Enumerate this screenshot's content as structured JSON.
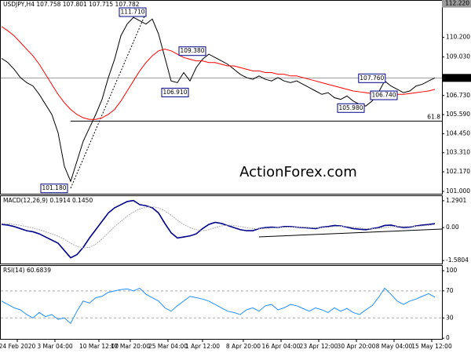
{
  "chart_data": [
    {
      "type": "line",
      "title": "USDJPY,H4  107.758 107.801 107.715 107.782",
      "ylim": [
        100.86,
        112.39
      ],
      "yticks": [
        {
          "value": 101,
          "label": "101.000"
        },
        {
          "value": 102.17,
          "label": "102.170"
        },
        {
          "value": 103.31,
          "label": "103.310"
        },
        {
          "value": 104.45,
          "label": "104.450"
        },
        {
          "value": 105.59,
          "label": "105.590"
        },
        {
          "value": 106.73,
          "label": "106.730"
        },
        {
          "value": 109.03,
          "label": "109.030"
        },
        {
          "value": 110.2,
          "label": "110.200"
        }
      ],
      "max_label": {
        "value": 112.22,
        "label": "112.220"
      },
      "last_label": {
        "value": 107.782,
        "label": "107.782"
      },
      "fib_level": {
        "value": 105.2,
        "label": "61.8"
      },
      "series": [
        {
          "color": "#000000",
          "values": [
            108.95,
            108.7,
            108.3,
            107.8,
            107.5,
            107.3,
            106.8,
            106.2,
            105.6,
            104.5,
            102.5,
            101.6,
            102.8,
            104.0,
            104.8,
            105.6,
            106.5,
            107.8,
            108.9,
            110.3,
            111.0,
            111.4,
            111.2,
            111.0,
            111.3,
            110.4,
            109.0,
            107.6,
            107.5,
            108.1,
            107.6,
            108.4,
            108.9,
            109.2,
            109.0,
            108.8,
            108.6,
            108.3,
            108.0,
            107.8,
            107.7,
            107.9,
            107.7,
            107.6,
            107.8,
            107.6,
            107.5,
            107.6,
            107.4,
            107.2,
            107.0,
            106.8,
            106.9,
            106.6,
            106.5,
            106.7,
            106.4,
            106.2,
            106.1,
            106.4,
            106.9,
            107.6,
            107.3,
            107.1,
            106.9,
            107.0,
            107.3,
            107.4,
            107.6,
            107.78
          ]
        },
        {
          "color": "#ff0000",
          "values": [
            110.85,
            110.6,
            110.3,
            109.9,
            109.5,
            109.1,
            108.6,
            108.0,
            107.4,
            106.8,
            106.3,
            105.9,
            105.6,
            105.4,
            105.3,
            105.3,
            105.4,
            105.6,
            105.9,
            106.4,
            107.0,
            107.6,
            108.2,
            108.7,
            109.1,
            109.4,
            109.5,
            109.4,
            109.2,
            109.0,
            108.9,
            108.8,
            108.8,
            108.7,
            108.7,
            108.6,
            108.5,
            108.5,
            108.4,
            108.3,
            108.2,
            108.2,
            108.1,
            108.1,
            108.0,
            108.0,
            107.9,
            107.9,
            107.8,
            107.7,
            107.6,
            107.5,
            107.4,
            107.3,
            107.2,
            107.1,
            107.0,
            106.95,
            106.9,
            106.85,
            106.8,
            106.8,
            106.8,
            106.8,
            106.8,
            106.85,
            106.9,
            106.95,
            107.0,
            107.1
          ]
        }
      ],
      "annotations": [
        {
          "label": "111.710",
          "value": 111.71,
          "x": 23
        },
        {
          "label": "109.380",
          "value": 109.38,
          "x": 32.5
        },
        {
          "label": "106.910",
          "value": 106.91,
          "x": 29.75
        },
        {
          "label": "107.760",
          "value": 107.76,
          "x": 61.1
        },
        {
          "label": "106.740",
          "value": 106.74,
          "x": 63
        },
        {
          "label": "105.980",
          "value": 105.98,
          "x": 57.75
        },
        {
          "label": "101.180",
          "value": 101.18,
          "x": 10.5
        }
      ],
      "watermark": "ActionForex.com"
    },
    {
      "type": "line",
      "title": "MACD(12,26,9) 0.1914 0.1450",
      "ylim": [
        -1.728,
        1.511
      ],
      "yticks": [
        1.2901,
        {
          "value": 0,
          "label": "0.00"
        },
        -1.5804
      ],
      "series": [
        {
          "color": "#00008b",
          "values": [
            0.15,
            0.12,
            0.05,
            -0.05,
            -0.15,
            -0.2,
            -0.3,
            -0.45,
            -0.6,
            -0.75,
            -1.1,
            -1.45,
            -1.3,
            -0.95,
            -0.5,
            -0.1,
            0.3,
            0.7,
            0.95,
            1.1,
            1.25,
            1.3,
            1.1,
            1.05,
            0.95,
            0.7,
            0.2,
            -0.25,
            -0.5,
            -0.45,
            -0.4,
            -0.3,
            -0.05,
            0.15,
            0.25,
            0.2,
            0.1,
            0.0,
            -0.1,
            -0.15,
            -0.15,
            -0.05,
            0.0,
            0.02,
            0.0,
            0.05,
            0.05,
            0.02,
            0.0,
            -0.02,
            -0.05,
            0.02,
            0.05,
            0.1,
            0.08,
            0.02,
            -0.05,
            -0.08,
            -0.1,
            -0.05,
            0.0,
            0.1,
            0.12,
            0.05,
            0.0,
            0.02,
            0.08,
            0.12,
            0.15,
            0.19
          ]
        },
        {
          "color": "#b0b0b0",
          "values": [
            0.2,
            0.18,
            0.15,
            0.1,
            0.05,
            -0.02,
            -0.1,
            -0.2,
            -0.3,
            -0.42,
            -0.56,
            -0.75,
            -0.9,
            -0.98,
            -0.95,
            -0.8,
            -0.55,
            -0.25,
            0.05,
            0.3,
            0.55,
            0.75,
            0.9,
            0.98,
            1.0,
            0.95,
            0.8,
            0.6,
            0.35,
            0.15,
            0.0,
            -0.1,
            -0.15,
            -0.1,
            0.0,
            0.08,
            0.12,
            0.1,
            0.05,
            0.0,
            -0.05,
            -0.06,
            -0.04,
            -0.02,
            0.0,
            0.02,
            0.03,
            0.03,
            0.02,
            0.0,
            -0.01,
            0.0,
            0.02,
            0.05,
            0.06,
            0.05,
            0.02,
            -0.02,
            -0.05,
            -0.06,
            -0.04,
            0.0,
            0.05,
            0.06,
            0.05,
            0.05,
            0.06,
            0.08,
            0.11,
            0.145
          ]
        }
      ]
    },
    {
      "type": "line",
      "title": "RSI(14) 60.6839",
      "ylim": [
        -1,
        107
      ],
      "yticks": [
        100,
        70,
        30,
        0
      ],
      "levels": [
        70,
        30
      ],
      "series": [
        {
          "color": "#1e90ff",
          "values": [
            55,
            50,
            45,
            42,
            35,
            30,
            38,
            32,
            35,
            28,
            30,
            22,
            40,
            55,
            52,
            60,
            62,
            68,
            70,
            72,
            73,
            70,
            74,
            65,
            60,
            55,
            45,
            40,
            48,
            55,
            62,
            60,
            58,
            55,
            50,
            45,
            40,
            38,
            35,
            42,
            45,
            40,
            48,
            50,
            42,
            45,
            50,
            48,
            44,
            40,
            45,
            42,
            38,
            45,
            40,
            44,
            38,
            35,
            42,
            48,
            60,
            74,
            65,
            55,
            50,
            55,
            58,
            62,
            66,
            60.68
          ]
        }
      ],
      "xticks": [
        {
          "value": 2.5,
          "label": "24 Feb 2020"
        },
        {
          "value": 8.5,
          "label": "3 Mar 04:00"
        },
        {
          "value": 15.5,
          "label": "10 Mar 12:00"
        },
        {
          "value": 20.5,
          "label": "17 Mar 20:00"
        },
        {
          "value": 26.5,
          "label": "25 Mar 04:00"
        },
        {
          "value": 32,
          "label": "1 Apr 12:00"
        },
        {
          "value": 38.5,
          "label": "8 Apr 20:00"
        },
        {
          "value": 44.5,
          "label": "16 Apr 04:00"
        },
        {
          "value": 50.5,
          "label": "23 Apr 12:00"
        },
        {
          "value": 56.5,
          "label": "30 Apr 20:00"
        },
        {
          "value": 62.5,
          "label": "8 May 04:00"
        },
        {
          "value": 68.5,
          "label": "15 May 12:00"
        }
      ]
    }
  ]
}
